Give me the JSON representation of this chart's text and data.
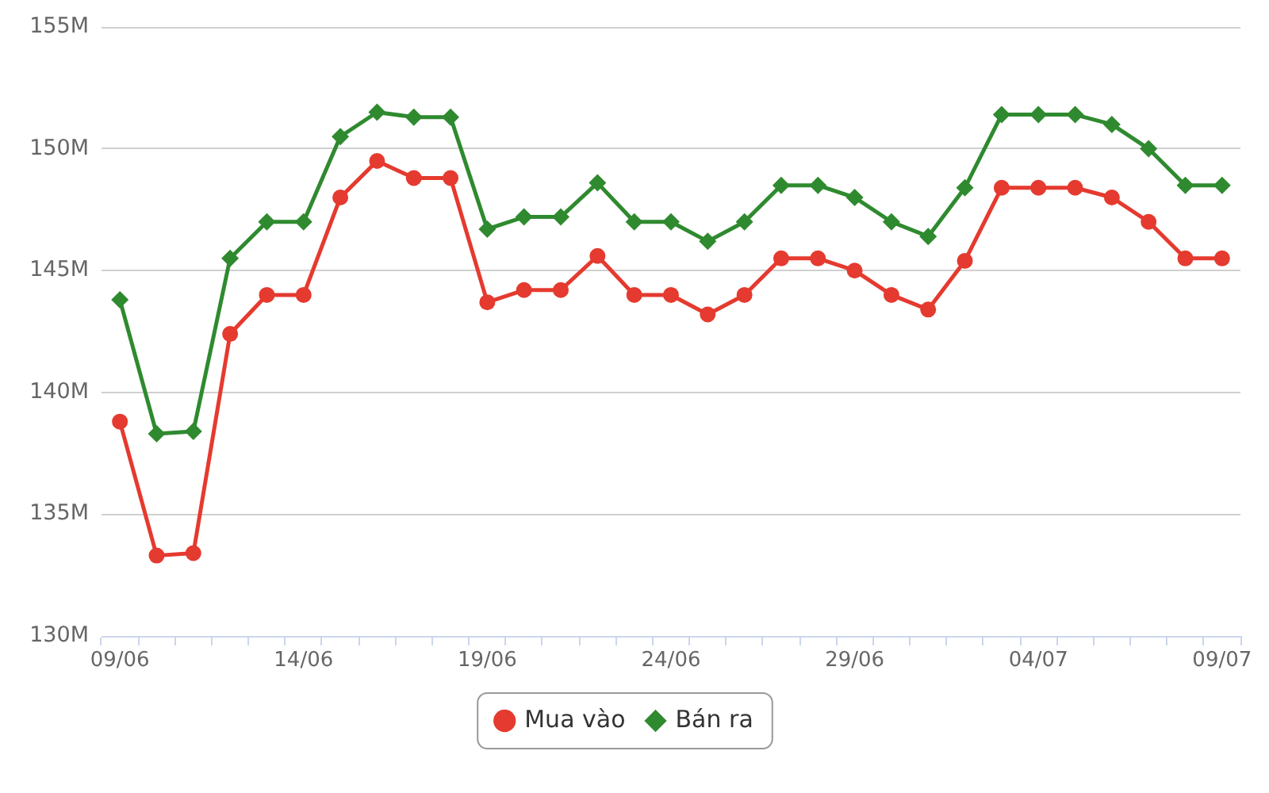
{
  "chart_data": {
    "type": "line",
    "categories": [
      "09/06",
      null,
      null,
      null,
      null,
      "14/06",
      null,
      null,
      null,
      null,
      "19/06",
      null,
      null,
      null,
      null,
      "24/06",
      null,
      null,
      null,
      null,
      "29/06",
      null,
      null,
      null,
      null,
      "04/07",
      null,
      null,
      null,
      null,
      "09/07"
    ],
    "series": [
      {
        "name": "Mua vào",
        "color": "#e53a2f",
        "marker": "circle",
        "values": [
          138.8,
          133.3,
          133.4,
          142.4,
          144,
          144,
          148,
          149.5,
          148.8,
          148.8,
          143.7,
          144.2,
          144.2,
          145.6,
          144,
          144,
          143.2,
          144,
          145.5,
          145.5,
          145,
          144,
          143.4,
          145.4,
          148.4,
          148.4,
          148.4,
          148,
          147,
          145.5,
          145.5
        ]
      },
      {
        "name": "Bán ra",
        "color": "#2f8a2f",
        "marker": "diamond",
        "values": [
          143.8,
          138.3,
          138.4,
          145.5,
          147,
          147,
          150.5,
          151.5,
          151.3,
          151.3,
          146.7,
          147.2,
          147.2,
          148.6,
          147,
          147,
          146.2,
          147,
          148.5,
          148.5,
          148,
          147,
          146.4,
          148.4,
          151.4,
          151.4,
          151.4,
          151,
          150,
          148.5,
          148.5
        ]
      }
    ],
    "ylim": [
      130,
      155
    ],
    "yticks": [
      {
        "value": 130,
        "label": "130M"
      },
      {
        "value": 135,
        "label": "135M"
      },
      {
        "value": 140,
        "label": "140M"
      },
      {
        "value": 145,
        "label": "145M"
      },
      {
        "value": 150,
        "label": "150M"
      },
      {
        "value": 155,
        "label": "155M"
      }
    ],
    "grid": "y",
    "legend": "bottom",
    "line_style": "solid"
  }
}
